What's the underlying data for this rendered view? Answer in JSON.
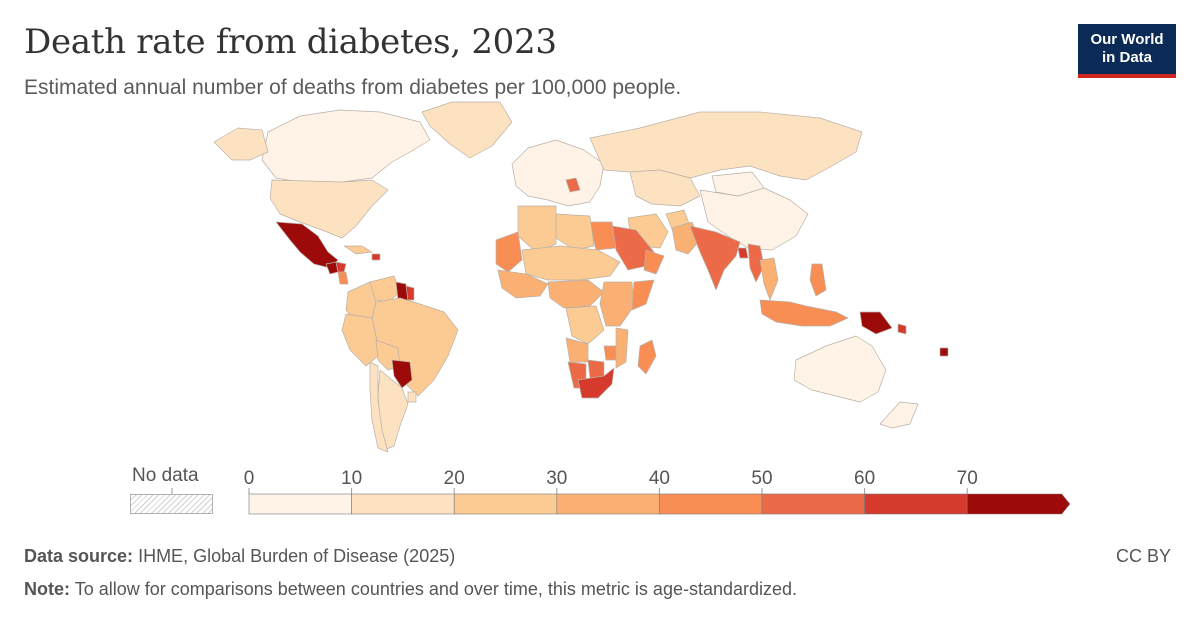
{
  "header": {
    "title": "Death rate from diabetes, 2023",
    "subtitle": "Estimated annual number of deaths from diabetes per 100,000 people."
  },
  "logo": {
    "line1": "Our World",
    "line2": "in Data"
  },
  "legend": {
    "no_data_label": "No data",
    "ticks": [
      "0",
      "10",
      "20",
      "30",
      "40",
      "50",
      "60",
      "70"
    ],
    "colors": [
      "#fef3e6",
      "#fde2c2",
      "#fccb94",
      "#fbb073",
      "#f98e55",
      "#ec6a48",
      "#d63a2c",
      "#9d0a0a"
    ]
  },
  "footer": {
    "source_label": "Data source:",
    "source_text": "IHME, Global Burden of Disease (2025)",
    "note_label": "Note:",
    "note_text": "To allow for comparisons between countries and over time, this metric is age-standardized.",
    "license": "CC BY"
  },
  "chart_data": {
    "type": "choropleth",
    "bins": [
      0,
      10,
      20,
      30,
      40,
      50,
      60,
      70
    ],
    "regions": [
      {
        "name": "Canada",
        "bin": 0
      },
      {
        "name": "Alaska",
        "bin": 1
      },
      {
        "name": "Greenland",
        "bin": 1
      },
      {
        "name": "United States",
        "bin": 1
      },
      {
        "name": "Mexico",
        "bin": 7
      },
      {
        "name": "Guatemala",
        "bin": 7
      },
      {
        "name": "Honduras",
        "bin": 6
      },
      {
        "name": "Nicaragua",
        "bin": 4
      },
      {
        "name": "Cuba",
        "bin": 2
      },
      {
        "name": "Haiti",
        "bin": 6
      },
      {
        "name": "Venezuela",
        "bin": 2
      },
      {
        "name": "Guyana",
        "bin": 7
      },
      {
        "name": "Suriname",
        "bin": 6
      },
      {
        "name": "Colombia",
        "bin": 2
      },
      {
        "name": "Brazil",
        "bin": 2
      },
      {
        "name": "Peru",
        "bin": 2
      },
      {
        "name": "Bolivia",
        "bin": 2
      },
      {
        "name": "Paraguay",
        "bin": 7
      },
      {
        "name": "Argentina",
        "bin": 1
      },
      {
        "name": "Chile",
        "bin": 1
      },
      {
        "name": "Uruguay",
        "bin": 1
      },
      {
        "name": "Europe",
        "bin": 0
      },
      {
        "name": "Serbia/Bosnia",
        "bin": 5
      },
      {
        "name": "Russia",
        "bin": 1
      },
      {
        "name": "China",
        "bin": 0
      },
      {
        "name": "Mongolia",
        "bin": 0
      },
      {
        "name": "Kazakhstan",
        "bin": 1
      },
      {
        "name": "Iran",
        "bin": 2
      },
      {
        "name": "Afghanistan",
        "bin": 2
      },
      {
        "name": "Pakistan",
        "bin": 3
      },
      {
        "name": "India",
        "bin": 5
      },
      {
        "name": "Bangladesh",
        "bin": 6
      },
      {
        "name": "Myanmar",
        "bin": 5
      },
      {
        "name": "Thailand",
        "bin": 3
      },
      {
        "name": "Indonesia",
        "bin": 4
      },
      {
        "name": "Philippines",
        "bin": 4
      },
      {
        "name": "Papua New Guinea",
        "bin": 7
      },
      {
        "name": "Solomon Islands",
        "bin": 6
      },
      {
        "name": "Fiji",
        "bin": 7
      },
      {
        "name": "Australia",
        "bin": 0
      },
      {
        "name": "New Zealand",
        "bin": 0
      },
      {
        "name": "Saudi Arabia",
        "bin": 5
      },
      {
        "name": "Oman",
        "bin": 4
      },
      {
        "name": "Egypt",
        "bin": 4
      },
      {
        "name": "Libya",
        "bin": 2
      },
      {
        "name": "Algeria",
        "bin": 2
      },
      {
        "name": "Western Sahara / Mauritania",
        "bin": 4
      },
      {
        "name": "Sahel",
        "bin": 2
      },
      {
        "name": "West Africa",
        "bin": 3
      },
      {
        "name": "Central Africa",
        "bin": 3
      },
      {
        "name": "DR Congo",
        "bin": 2
      },
      {
        "name": "East Africa",
        "bin": 3
      },
      {
        "name": "Somalia",
        "bin": 4
      },
      {
        "name": "Angola",
        "bin": 3
      },
      {
        "name": "Namibia",
        "bin": 5
      },
      {
        "name": "Botswana",
        "bin": 5
      },
      {
        "name": "Zimbabwe",
        "bin": 4
      },
      {
        "name": "Mozambique",
        "bin": 3
      },
      {
        "name": "South Africa",
        "bin": 6
      },
      {
        "name": "Madagascar",
        "bin": 4
      }
    ]
  }
}
